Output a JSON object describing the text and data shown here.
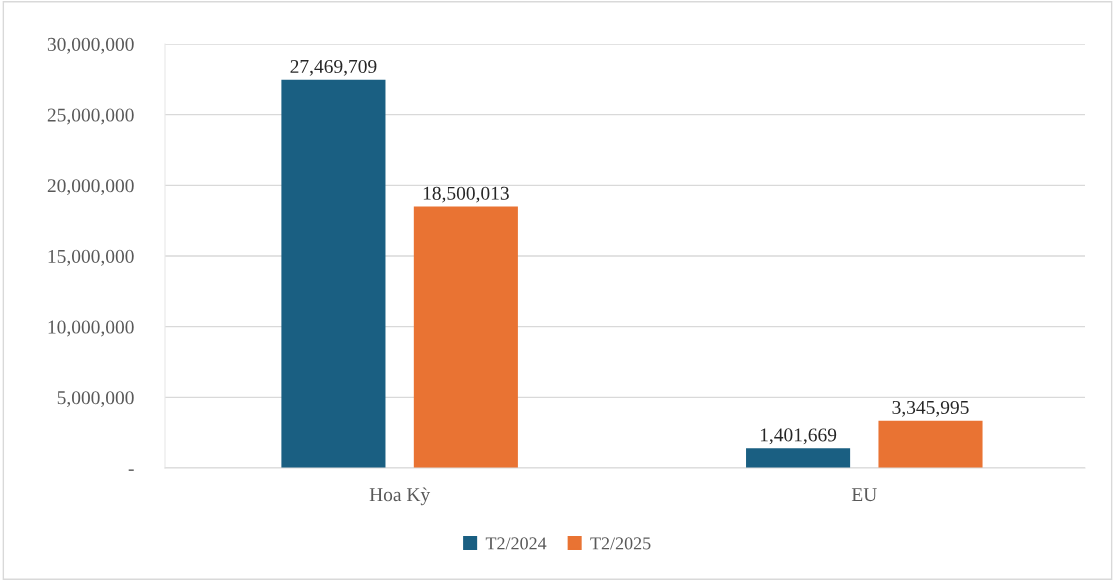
{
  "chart_data": {
    "type": "bar",
    "categories": [
      "Hoa Kỳ",
      "EU"
    ],
    "series": [
      {
        "name": "T2/2024",
        "color": "#1a5f82",
        "values": [
          27469709,
          1401669
        ],
        "value_labels": [
          "27,469,709",
          "1,401,669"
        ]
      },
      {
        "name": "T2/2025",
        "color": "#e97333",
        "values": [
          18500013,
          3345995
        ],
        "value_labels": [
          "18,500,013",
          "3,345,995"
        ]
      }
    ],
    "ylim": [
      0,
      30000000
    ],
    "yticks": [
      {
        "value": 0,
        "label": "-"
      },
      {
        "value": 5000000,
        "label": "5,000,000"
      },
      {
        "value": 10000000,
        "label": "10,000,000"
      },
      {
        "value": 15000000,
        "label": "15,000,000"
      },
      {
        "value": 20000000,
        "label": "20,000,000"
      },
      {
        "value": 25000000,
        "label": "25,000,000"
      },
      {
        "value": 30000000,
        "label": "30,000,000"
      }
    ],
    "grid": "y",
    "legend": "bottom"
  }
}
